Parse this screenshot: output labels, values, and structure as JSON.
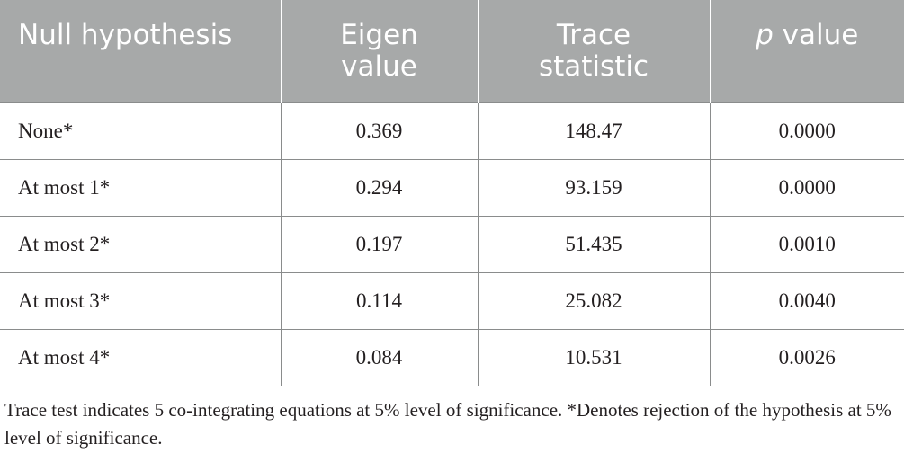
{
  "table": {
    "headers": {
      "col1": "Null hypothesis",
      "col2_line1": "Eigen",
      "col2_line2": "value",
      "col3_line1": "Trace",
      "col3_line2": "statistic",
      "col4_italic": "p",
      "col4_rest": " value"
    },
    "rows": [
      [
        "None*",
        "0.369",
        "148.47",
        "0.0000"
      ],
      [
        "At most 1*",
        "0.294",
        "93.159",
        "0.0000"
      ],
      [
        "At most 2*",
        "0.197",
        "51.435",
        "0.0010"
      ],
      [
        "At most 3*",
        "0.114",
        "25.082",
        "0.0040"
      ],
      [
        "At most 4*",
        "0.084",
        "10.531",
        "0.0026"
      ]
    ]
  },
  "footnote": "Trace test indicates 5 co-integrating equations at 5% level of significance. *Denotes rejection of the hypothesis at 5% level of significance.",
  "colors": {
    "header_bg": "#a7a9a9",
    "header_text": "#ffffff",
    "body_text": "#231f20",
    "rule": "#8a8c8c"
  }
}
